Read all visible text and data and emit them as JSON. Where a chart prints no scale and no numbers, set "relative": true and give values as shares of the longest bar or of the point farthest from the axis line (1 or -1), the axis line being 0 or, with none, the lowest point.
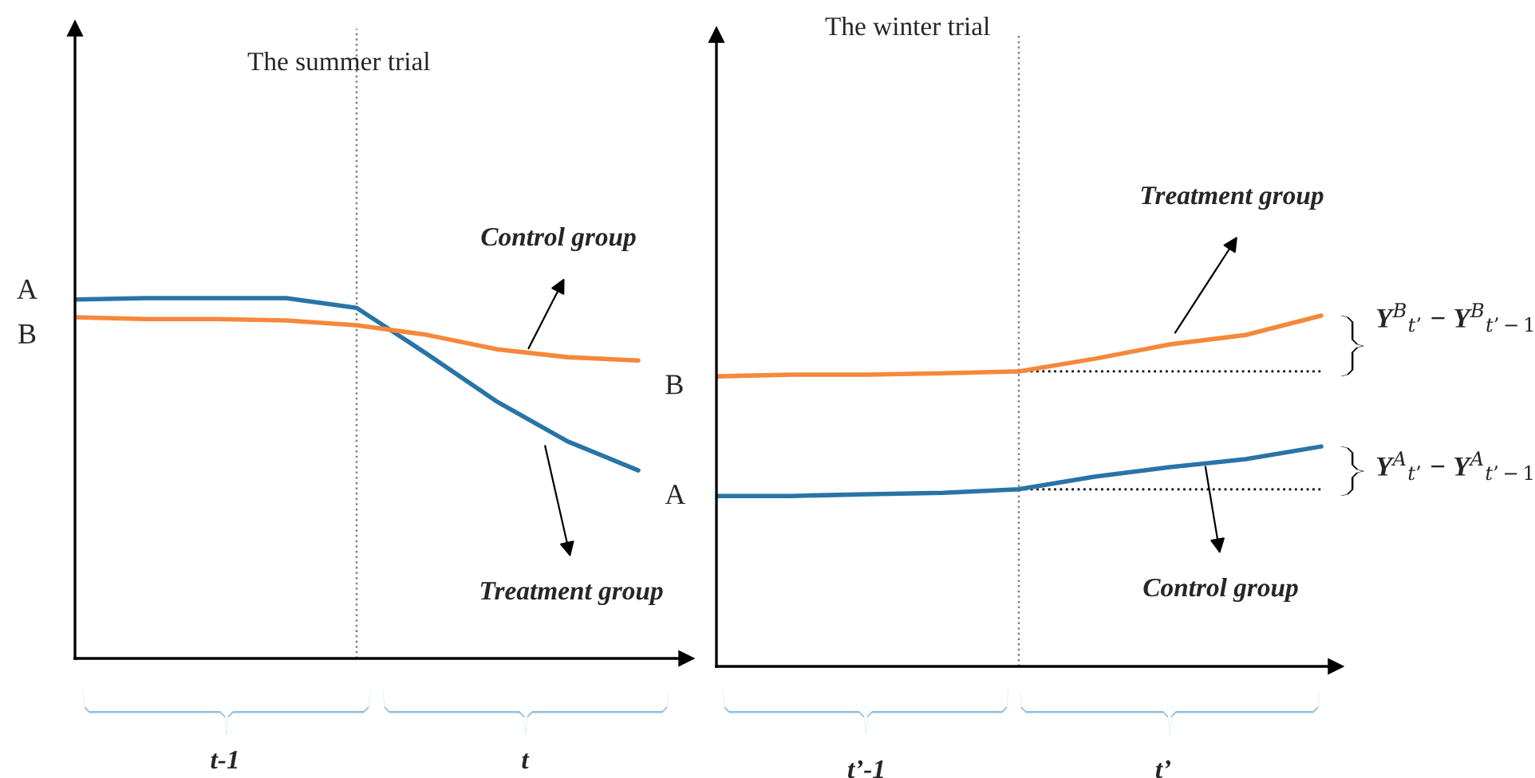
{
  "chart_data": [
    {
      "type": "line",
      "relative": true,
      "title": "The summer trial",
      "categories": [
        null,
        null,
        null,
        null,
        null,
        null,
        null,
        null,
        null
      ],
      "series": [
        {
          "name": "A",
          "color": "#2874a6",
          "values": [
            0.996,
            1.0,
            1.0,
            1.0,
            0.973,
            0.845,
            0.712,
            0.602,
            0.522
          ]
        },
        {
          "name": "B",
          "color": "#f5883a",
          "values": [
            0.947,
            0.942,
            0.942,
            0.938,
            0.925,
            0.898,
            0.858,
            0.836,
            0.827
          ]
        }
      ],
      "annotations": [
        "A",
        "B",
        "Control group",
        "Treatment group",
        "t-1",
        "t"
      ]
    },
    {
      "type": "line",
      "relative": true,
      "title": "The winter trial",
      "categories": [
        null,
        null,
        null,
        null,
        null,
        null,
        null,
        null,
        null
      ],
      "series": [
        {
          "color": "#f5883a",
          "values": [
            0.827,
            0.832,
            0.832,
            0.836,
            0.841,
            0.877,
            0.918,
            0.945,
            1.0
          ]
        },
        {
          "color": "#2874a6",
          "values": [
            0.486,
            0.486,
            0.491,
            0.495,
            0.505,
            0.541,
            0.568,
            0.591,
            0.627
          ]
        }
      ],
      "ref_lines": [
        {
          "axis": "y",
          "value": 0.841,
          "line_style": "dotted",
          "color": "#000000"
        },
        {
          "axis": "y",
          "value": 0.505,
          "line_style": "dotted",
          "color": "#000000"
        }
      ],
      "annotations": [
        "Treatment group",
        "Control group",
        "Y$^{B}$$_{t’}$ − Y$^{B}$$_{t’−1}$",
        "Y$^{A}$$_{t’}$ − Y$^{A}$$_{t’−1}$",
        "t’-1",
        "t’"
      ]
    }
  ]
}
